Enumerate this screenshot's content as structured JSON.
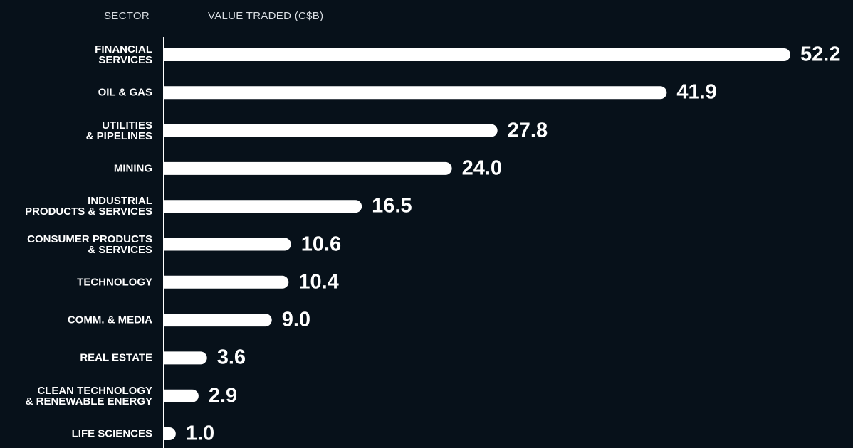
{
  "chart_data": {
    "type": "bar",
    "orientation": "horizontal",
    "y_label": "SECTOR",
    "x_label": "VALUE TRADED (C$B)",
    "categories": [
      "FINANCIAL\nSERVICES",
      "OIL & GAS",
      "UTILITIES\n& PIPELINES",
      "MINING",
      "INDUSTRIAL\nPRODUCTS & SERVICES",
      "CONSUMER PRODUCTS\n& SERVICES",
      "TECHNOLOGY",
      "COMM. & MEDIA",
      "REAL ESTATE",
      "CLEAN TECHNOLOGY\n& RENEWABLE ENERGY",
      "LIFE SCIENCES"
    ],
    "values": [
      52.2,
      41.9,
      27.8,
      24,
      16.5,
      10.6,
      10.4,
      9,
      3.6,
      2.9,
      1
    ],
    "value_labels": [
      "52.2",
      "41.9",
      "27.8",
      "24.0",
      "16.5",
      "10.6",
      "10.4",
      "9.0",
      "3.6",
      "2.9",
      "1.0"
    ],
    "color": "#ffffff",
    "xlim": [
      0,
      52.2
    ]
  }
}
